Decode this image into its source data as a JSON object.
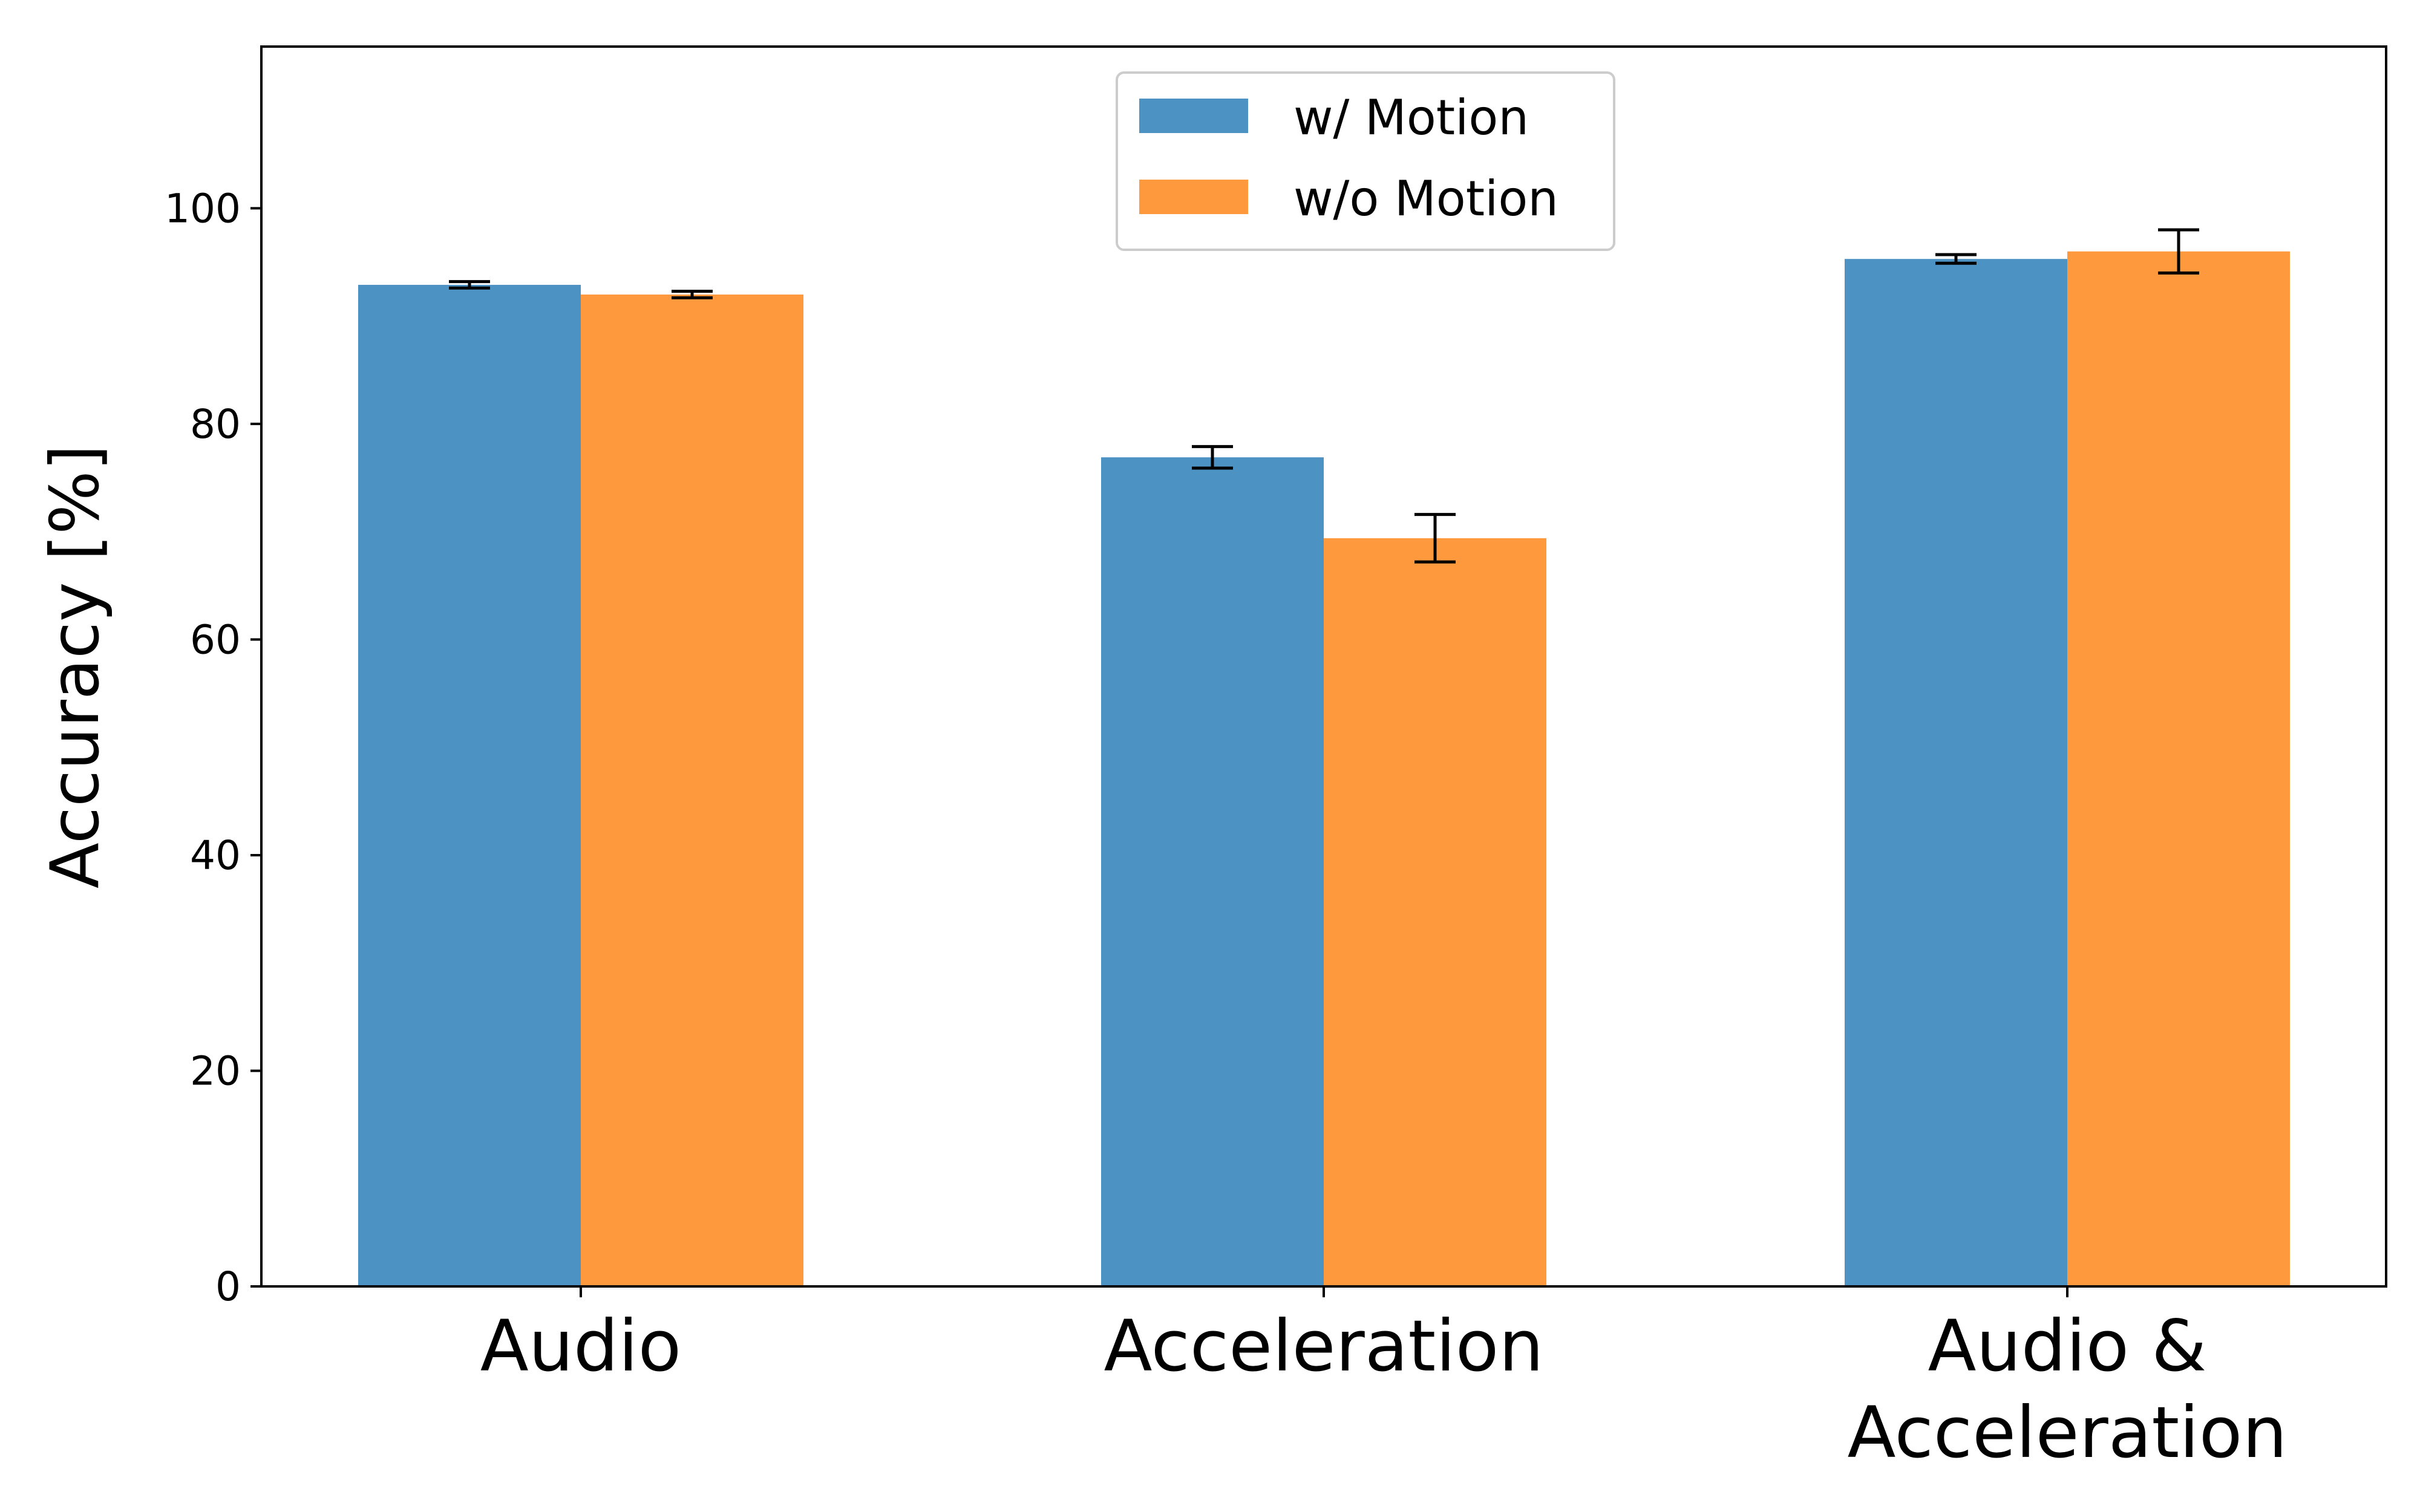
{
  "chart_data": {
    "type": "bar",
    "title": "",
    "xlabel": "",
    "ylabel": "Accuracy [%]",
    "ylim": [
      0,
      115
    ],
    "yticks": [
      0,
      20,
      40,
      60,
      80,
      100
    ],
    "grid": false,
    "categories": [
      [
        "Audio"
      ],
      [
        "Acceleration"
      ],
      [
        "Audio &",
        "Acceleration"
      ]
    ],
    "series": [
      {
        "name": "w/ Motion",
        "color": "#4c92c3",
        "values": [
          92.9,
          76.9,
          95.3
        ],
        "errors": [
          0.3,
          1.0,
          0.4
        ]
      },
      {
        "name": "w/o Motion",
        "color": "#ff993e",
        "values": [
          92.0,
          69.4,
          96.0
        ],
        "errors": [
          0.3,
          2.2,
          2.0
        ]
      }
    ],
    "legend_position": "top-center"
  }
}
